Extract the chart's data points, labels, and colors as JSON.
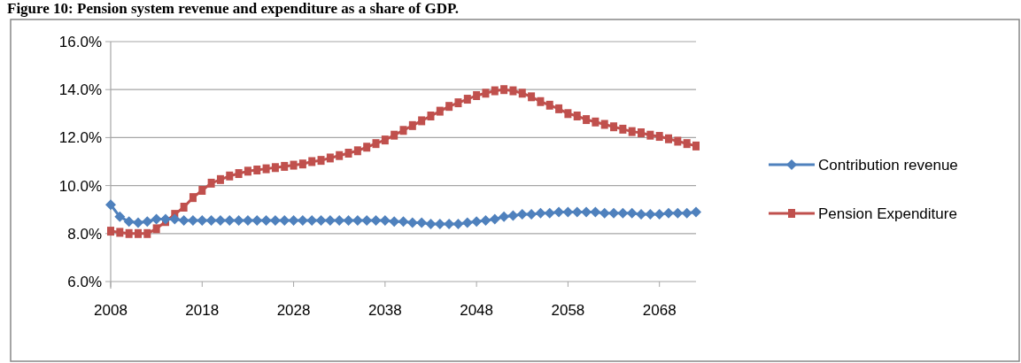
{
  "chart_data": {
    "type": "line",
    "title": "Figure 10: Pension system revenue and expenditure as a share of GDP.",
    "x": [
      2008,
      2009,
      2010,
      2011,
      2012,
      2013,
      2014,
      2015,
      2016,
      2017,
      2018,
      2019,
      2020,
      2021,
      2022,
      2023,
      2024,
      2025,
      2026,
      2027,
      2028,
      2029,
      2030,
      2031,
      2032,
      2033,
      2034,
      2035,
      2036,
      2037,
      2038,
      2039,
      2040,
      2041,
      2042,
      2043,
      2044,
      2045,
      2046,
      2047,
      2048,
      2049,
      2050,
      2051,
      2052,
      2053,
      2054,
      2055,
      2056,
      2057,
      2058,
      2059,
      2060,
      2061,
      2062,
      2063,
      2064,
      2065,
      2066,
      2067,
      2068,
      2069,
      2070,
      2071,
      2072
    ],
    "series": [
      {
        "name": "Contribution revenue",
        "color": "#4f81bd",
        "marker": "diamond",
        "values": [
          9.2,
          8.7,
          8.5,
          8.45,
          8.5,
          8.6,
          8.6,
          8.6,
          8.55,
          8.55,
          8.55,
          8.55,
          8.55,
          8.55,
          8.55,
          8.55,
          8.55,
          8.55,
          8.55,
          8.55,
          8.55,
          8.55,
          8.55,
          8.55,
          8.55,
          8.55,
          8.55,
          8.55,
          8.55,
          8.55,
          8.55,
          8.5,
          8.5,
          8.45,
          8.45,
          8.4,
          8.4,
          8.4,
          8.4,
          8.45,
          8.5,
          8.55,
          8.6,
          8.7,
          8.75,
          8.8,
          8.8,
          8.85,
          8.85,
          8.9,
          8.9,
          8.9,
          8.9,
          8.9,
          8.85,
          8.85,
          8.85,
          8.85,
          8.8,
          8.8,
          8.8,
          8.85,
          8.85,
          8.85,
          8.9
        ]
      },
      {
        "name": "Pension Expenditure",
        "color": "#c0504d",
        "values": [
          8.1,
          8.05,
          8.0,
          8.0,
          8.0,
          8.2,
          8.5,
          8.8,
          9.1,
          9.5,
          9.8,
          10.1,
          10.25,
          10.4,
          10.5,
          10.6,
          10.65,
          10.7,
          10.75,
          10.8,
          10.85,
          10.9,
          11.0,
          11.05,
          11.15,
          11.25,
          11.35,
          11.45,
          11.6,
          11.75,
          11.9,
          12.1,
          12.3,
          12.5,
          12.7,
          12.9,
          13.1,
          13.3,
          13.45,
          13.6,
          13.75,
          13.85,
          13.95,
          14.0,
          13.95,
          13.85,
          13.7,
          13.5,
          13.35,
          13.2,
          13.0,
          12.9,
          12.75,
          12.65,
          12.55,
          12.45,
          12.35,
          12.25,
          12.2,
          12.1,
          12.05,
          11.95,
          11.85,
          11.75,
          11.65
        ]
      }
    ],
    "xlim": [
      2008,
      2072
    ],
    "xticks": [
      2008,
      2018,
      2028,
      2038,
      2048,
      2058,
      2068
    ],
    "ylim": [
      6,
      16
    ],
    "yticks": [
      {
        "value": 6,
        "label": "6.0%"
      },
      {
        "value": 8,
        "label": "8.0%"
      },
      {
        "value": 10,
        "label": "10.0%"
      },
      {
        "value": 12,
        "label": "12.0%"
      },
      {
        "value": 14,
        "label": "14.0%"
      },
      {
        "value": 16,
        "label": "16.0%"
      }
    ],
    "grid": "y",
    "legend": "right",
    "marker": "square"
  }
}
